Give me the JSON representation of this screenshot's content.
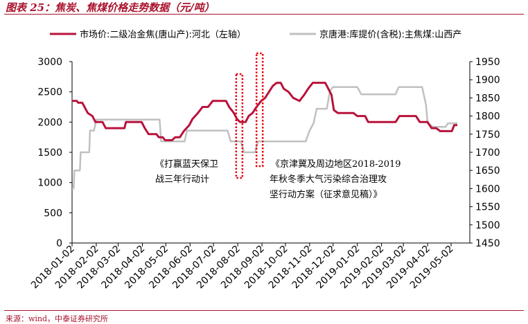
{
  "figure_title": "图表 25：焦炭、焦煤价格走势数据（元/吨）",
  "source": "来源：wind，中泰证券研究所",
  "chart_data": {
    "type": "line",
    "left_axis": {
      "ylim": [
        0,
        3000
      ],
      "ticks": [
        "0",
        "500",
        "1000",
        "1500",
        "2000",
        "2500",
        "3000"
      ],
      "tick_values": [
        0,
        500,
        1000,
        1500,
        2000,
        2500,
        3000
      ]
    },
    "right_axis": {
      "ylim": [
        1450,
        1950
      ],
      "ticks": [
        "1450",
        "1500",
        "1550",
        "1600",
        "1650",
        "1700",
        "1750",
        "1800",
        "1850",
        "1900",
        "1950"
      ],
      "tick_values": [
        1450,
        1500,
        1550,
        1600,
        1650,
        1700,
        1750,
        1800,
        1850,
        1900,
        1950
      ]
    },
    "x_ticks": [
      "2018-01-02",
      "2018-02-02",
      "2018-03-02",
      "2018-04-02",
      "2018-05-02",
      "2018-06-02",
      "2018-07-02",
      "2018-08-02",
      "2018-09-02",
      "2018-10-02",
      "2018-11-02",
      "2018-12-02",
      "2019-01-02",
      "2019-02-02",
      "2019-03-02",
      "2019-04-02",
      "2019-05-02"
    ],
    "x_range": [
      "2018-01-02",
      "2019-05-10"
    ],
    "series": [
      {
        "name": "市场价:二级冶金焦(唐山产):河北（左轴）",
        "axis": "left",
        "color": "#b8123b",
        "points": [
          [
            "2018-01-02",
            2350
          ],
          [
            "2018-01-08",
            2350
          ],
          [
            "2018-01-10",
            2320
          ],
          [
            "2018-01-15",
            2320
          ],
          [
            "2018-01-18",
            2250
          ],
          [
            "2018-01-22",
            2150
          ],
          [
            "2018-01-28",
            2100
          ],
          [
            "2018-02-01",
            2000
          ],
          [
            "2018-02-10",
            2000
          ],
          [
            "2018-02-12",
            1950
          ],
          [
            "2018-02-14",
            1900
          ],
          [
            "2018-03-10",
            1900
          ],
          [
            "2018-03-12",
            2000
          ],
          [
            "2018-04-01",
            2000
          ],
          [
            "2018-04-05",
            1900
          ],
          [
            "2018-04-10",
            1800
          ],
          [
            "2018-04-20",
            1800
          ],
          [
            "2018-04-23",
            1750
          ],
          [
            "2018-04-28",
            1750
          ],
          [
            "2018-05-01",
            1700
          ],
          [
            "2018-05-10",
            1700
          ],
          [
            "2018-05-14",
            1750
          ],
          [
            "2018-05-20",
            1750
          ],
          [
            "2018-05-25",
            1850
          ],
          [
            "2018-06-01",
            1950
          ],
          [
            "2018-06-05",
            2050
          ],
          [
            "2018-06-12",
            2150
          ],
          [
            "2018-06-18",
            2250
          ],
          [
            "2018-06-25",
            2250
          ],
          [
            "2018-07-01",
            2350
          ],
          [
            "2018-07-10",
            2350
          ],
          [
            "2018-07-18",
            2350
          ],
          [
            "2018-07-22",
            2250
          ],
          [
            "2018-07-28",
            2150
          ],
          [
            "2018-08-01",
            2050
          ],
          [
            "2018-08-05",
            2000
          ],
          [
            "2018-08-12",
            2000
          ],
          [
            "2018-08-16",
            2100
          ],
          [
            "2018-08-21",
            2150
          ],
          [
            "2018-08-26",
            2250
          ],
          [
            "2018-09-01",
            2350
          ],
          [
            "2018-09-06",
            2400
          ],
          [
            "2018-09-11",
            2500
          ],
          [
            "2018-09-16",
            2600
          ],
          [
            "2018-09-21",
            2650
          ],
          [
            "2018-09-26",
            2650
          ],
          [
            "2018-09-30",
            2550
          ],
          [
            "2018-10-06",
            2500
          ],
          [
            "2018-10-12",
            2400
          ],
          [
            "2018-10-20",
            2350
          ],
          [
            "2018-10-26",
            2450
          ],
          [
            "2018-10-31",
            2550
          ],
          [
            "2018-11-06",
            2650
          ],
          [
            "2018-11-22",
            2650
          ],
          [
            "2018-11-26",
            2550
          ],
          [
            "2018-11-30",
            2450
          ],
          [
            "2018-12-03",
            2200
          ],
          [
            "2018-12-08",
            2150
          ],
          [
            "2018-12-28",
            2150
          ],
          [
            "2019-01-02",
            2100
          ],
          [
            "2019-01-12",
            2100
          ],
          [
            "2019-01-16",
            2000
          ],
          [
            "2019-02-15",
            2000
          ],
          [
            "2019-02-20",
            2000
          ],
          [
            "2019-02-25",
            2100
          ],
          [
            "2019-03-18",
            2100
          ],
          [
            "2019-03-23",
            2000
          ],
          [
            "2019-04-02",
            2000
          ],
          [
            "2019-04-07",
            1900
          ],
          [
            "2019-04-13",
            1900
          ],
          [
            "2019-04-18",
            1850
          ],
          [
            "2019-05-03",
            1850
          ],
          [
            "2019-05-06",
            1950
          ],
          [
            "2019-05-10",
            1950
          ]
        ]
      },
      {
        "name": "京唐港:库提价(含税):主焦煤:山西产",
        "axis": "right",
        "color": "#c0c0c0",
        "points": [
          [
            "2018-01-02",
            1600
          ],
          [
            "2018-01-04",
            1600
          ],
          [
            "2018-01-05",
            1650
          ],
          [
            "2018-01-12",
            1650
          ],
          [
            "2018-01-13",
            1700
          ],
          [
            "2018-01-24",
            1700
          ],
          [
            "2018-01-25",
            1760
          ],
          [
            "2018-01-30",
            1760
          ],
          [
            "2018-02-02",
            1790
          ],
          [
            "2018-04-24",
            1790
          ],
          [
            "2018-04-26",
            1730
          ],
          [
            "2018-05-26",
            1730
          ],
          [
            "2018-05-29",
            1760
          ],
          [
            "2018-07-20",
            1760
          ],
          [
            "2018-07-24",
            1730
          ],
          [
            "2018-08-06",
            1730
          ],
          [
            "2018-08-10",
            1700
          ],
          [
            "2018-08-24",
            1700
          ],
          [
            "2018-08-28",
            1730
          ],
          [
            "2018-10-28",
            1730
          ],
          [
            "2018-11-02",
            1760
          ],
          [
            "2018-11-07",
            1780
          ],
          [
            "2018-11-11",
            1820
          ],
          [
            "2018-11-24",
            1820
          ],
          [
            "2018-11-28",
            1870
          ],
          [
            "2018-12-02",
            1880
          ],
          [
            "2019-01-02",
            1880
          ],
          [
            "2019-01-07",
            1860
          ],
          [
            "2019-02-20",
            1860
          ],
          [
            "2019-02-24",
            1880
          ],
          [
            "2019-03-26",
            1880
          ],
          [
            "2019-03-29",
            1850
          ],
          [
            "2019-03-31",
            1830
          ],
          [
            "2019-04-02",
            1780
          ],
          [
            "2019-04-09",
            1770
          ],
          [
            "2019-04-25",
            1770
          ],
          [
            "2019-04-28",
            1780
          ],
          [
            "2019-05-10",
            1780
          ]
        ]
      }
    ],
    "annotations": [
      {
        "lines": [
          "《打赢蓝天保卫",
          "战三年行动计"
        ]
      },
      {
        "lines": [
          "《京津冀及周边地区2018-2019",
          "年秋冬季大气污染综合治理攻",
          "坚行动方案（征求意见稿）》"
        ]
      }
    ],
    "highlight_dates": [
      [
        "2018-07-31",
        "2018-08-08"
      ],
      [
        "2018-08-26",
        "2018-09-03"
      ]
    ]
  }
}
